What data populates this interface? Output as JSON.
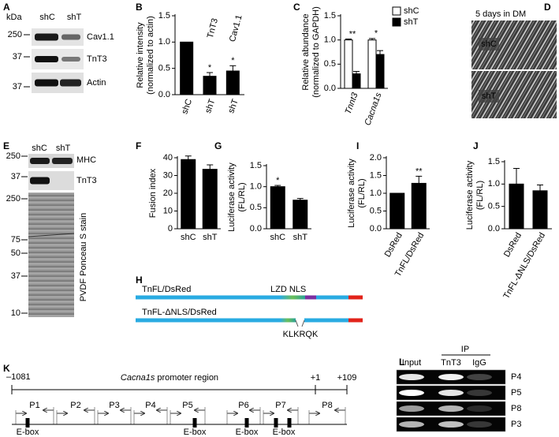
{
  "chart_data": [
    {
      "panel": "B",
      "type": "bar",
      "ylabel": [
        "Relative intensity",
        "(normalized to actin)"
      ],
      "categories": [
        "shC",
        "shT",
        "shT"
      ],
      "bar_headers": [
        null,
        "TnT3",
        "Cav1.1"
      ],
      "values": [
        1.0,
        0.35,
        0.45
      ],
      "errors": [
        null,
        0.07,
        0.1
      ],
      "significance": [
        null,
        "*",
        "*"
      ],
      "color": "#000000",
      "ylim": [
        0,
        1.5
      ],
      "yticks": [
        {
          "value": 0,
          "label": "0.0"
        },
        0.5,
        {
          "value": 1,
          "label": "1.0"
        },
        1.5
      ]
    },
    {
      "panel": "C",
      "type": "bar",
      "ylabel": [
        "Relative abundance",
        "(normalized to GAPDH)"
      ],
      "categories": [
        "Tnnt3",
        "Cacna1s"
      ],
      "series": [
        {
          "name": "shC",
          "color": "#ffffff",
          "values": [
            1.0,
            1.0
          ],
          "errors": [
            0.02,
            0.03
          ]
        },
        {
          "name": "shT",
          "color": "#000000",
          "values": [
            0.3,
            0.7
          ],
          "errors": [
            0.05,
            0.08
          ]
        }
      ],
      "significance": [
        "**",
        "*"
      ],
      "legend": "top-right",
      "ylim": [
        0,
        1.5
      ],
      "yticks": [
        {
          "value": 0,
          "label": "0.0"
        },
        0.5,
        {
          "value": 1,
          "label": "1.0"
        },
        1.5
      ]
    },
    {
      "panel": "F",
      "type": "bar",
      "ylabel": [
        "Fusion index"
      ],
      "categories": [
        "shC",
        "shT"
      ],
      "values": [
        39,
        33.5
      ],
      "errors": [
        2,
        2.5
      ],
      "color": "#000000",
      "ylim": [
        0,
        40
      ],
      "yticks": [
        0,
        10,
        20,
        30,
        40
      ]
    },
    {
      "panel": "G",
      "type": "bar",
      "ylabel": [
        "Luciferase activity",
        "(FL/RL)"
      ],
      "categories": [
        "shC",
        "shT"
      ],
      "values": [
        1.0,
        0.68
      ],
      "errors": [
        0.03,
        0.04
      ],
      "significance": [
        "*",
        null
      ],
      "color": "#000000",
      "ylim": [
        0,
        1.5
      ],
      "yticks": [
        {
          "value": 0,
          "label": "0.0"
        },
        0.5,
        {
          "value": 1,
          "label": "1.0"
        },
        1.5
      ]
    },
    {
      "panel": "I",
      "type": "bar",
      "ylabel": [
        "Luciferase activity",
        "(FL/RL)"
      ],
      "categories": [
        "DsRed",
        "TnFL/DsRed"
      ],
      "values": [
        1.0,
        1.28
      ],
      "errors": [
        null,
        0.2
      ],
      "significance": [
        null,
        "**"
      ],
      "color": "#000000",
      "ylim": [
        0,
        2
      ],
      "yticks": [
        {
          "value": 0,
          "label": "0.0"
        },
        0.5,
        {
          "value": 1,
          "label": "1.0"
        },
        1.5,
        {
          "value": 2,
          "label": "2.0"
        }
      ]
    },
    {
      "panel": "J",
      "type": "bar",
      "ylabel": [
        "Luciferase activity",
        "(FL/RL)"
      ],
      "categories": [
        "DsRed",
        "TnFL-ΔNLS/DsRed"
      ],
      "values": [
        1.0,
        0.85
      ],
      "errors": [
        0.35,
        0.13
      ],
      "color": "#000000",
      "ylim": [
        0,
        1.5
      ],
      "yticks": [
        {
          "value": 0,
          "label": "0.0"
        },
        0.5,
        {
          "value": 1,
          "label": "1.0"
        },
        1.5
      ]
    }
  ],
  "panels": {
    "A": {
      "letter": "A",
      "unit": "kDa",
      "markers": [
        "250",
        "37",
        "37"
      ],
      "lanes": [
        "shC",
        "shT"
      ],
      "bands": [
        "Cav1.1",
        "TnT3",
        "Actin"
      ]
    },
    "D": {
      "letter": "D",
      "condition": "5 days in DM",
      "rows": [
        "shC",
        "shT"
      ]
    },
    "E": {
      "letter": "E",
      "markers": [
        "250",
        "37",
        "250",
        "75",
        "50",
        "37",
        "10"
      ],
      "lanes": [
        "shC",
        "shT"
      ],
      "bands": [
        "MHC",
        "TnT3"
      ],
      "stain": "PVDF Ponceau S stain"
    },
    "H": {
      "letter": "H",
      "constructs": [
        "TnFL/DsRed",
        "TnFL-ΔNLS/DsRed"
      ],
      "domains": "LZD NLS",
      "deleted_sequence": "KLKRQK"
    },
    "K": {
      "letter": "K",
      "start": "–1081",
      "region": [
        "Cacna1s",
        " promoter region"
      ],
      "tss": "+1",
      "end": "+109",
      "primers": [
        "P1",
        "P2",
        "P3",
        "P4",
        "P5",
        "P6",
        "P7",
        "P8"
      ],
      "e_boxes": [
        "E-box",
        "E-box",
        "E-box",
        "E-box"
      ]
    },
    "L": {
      "letter": "L",
      "ip": "IP",
      "columns": [
        "Input",
        "TnT3",
        "IgG"
      ],
      "rows": [
        "P4",
        "P5",
        "P8",
        "P3"
      ]
    }
  }
}
